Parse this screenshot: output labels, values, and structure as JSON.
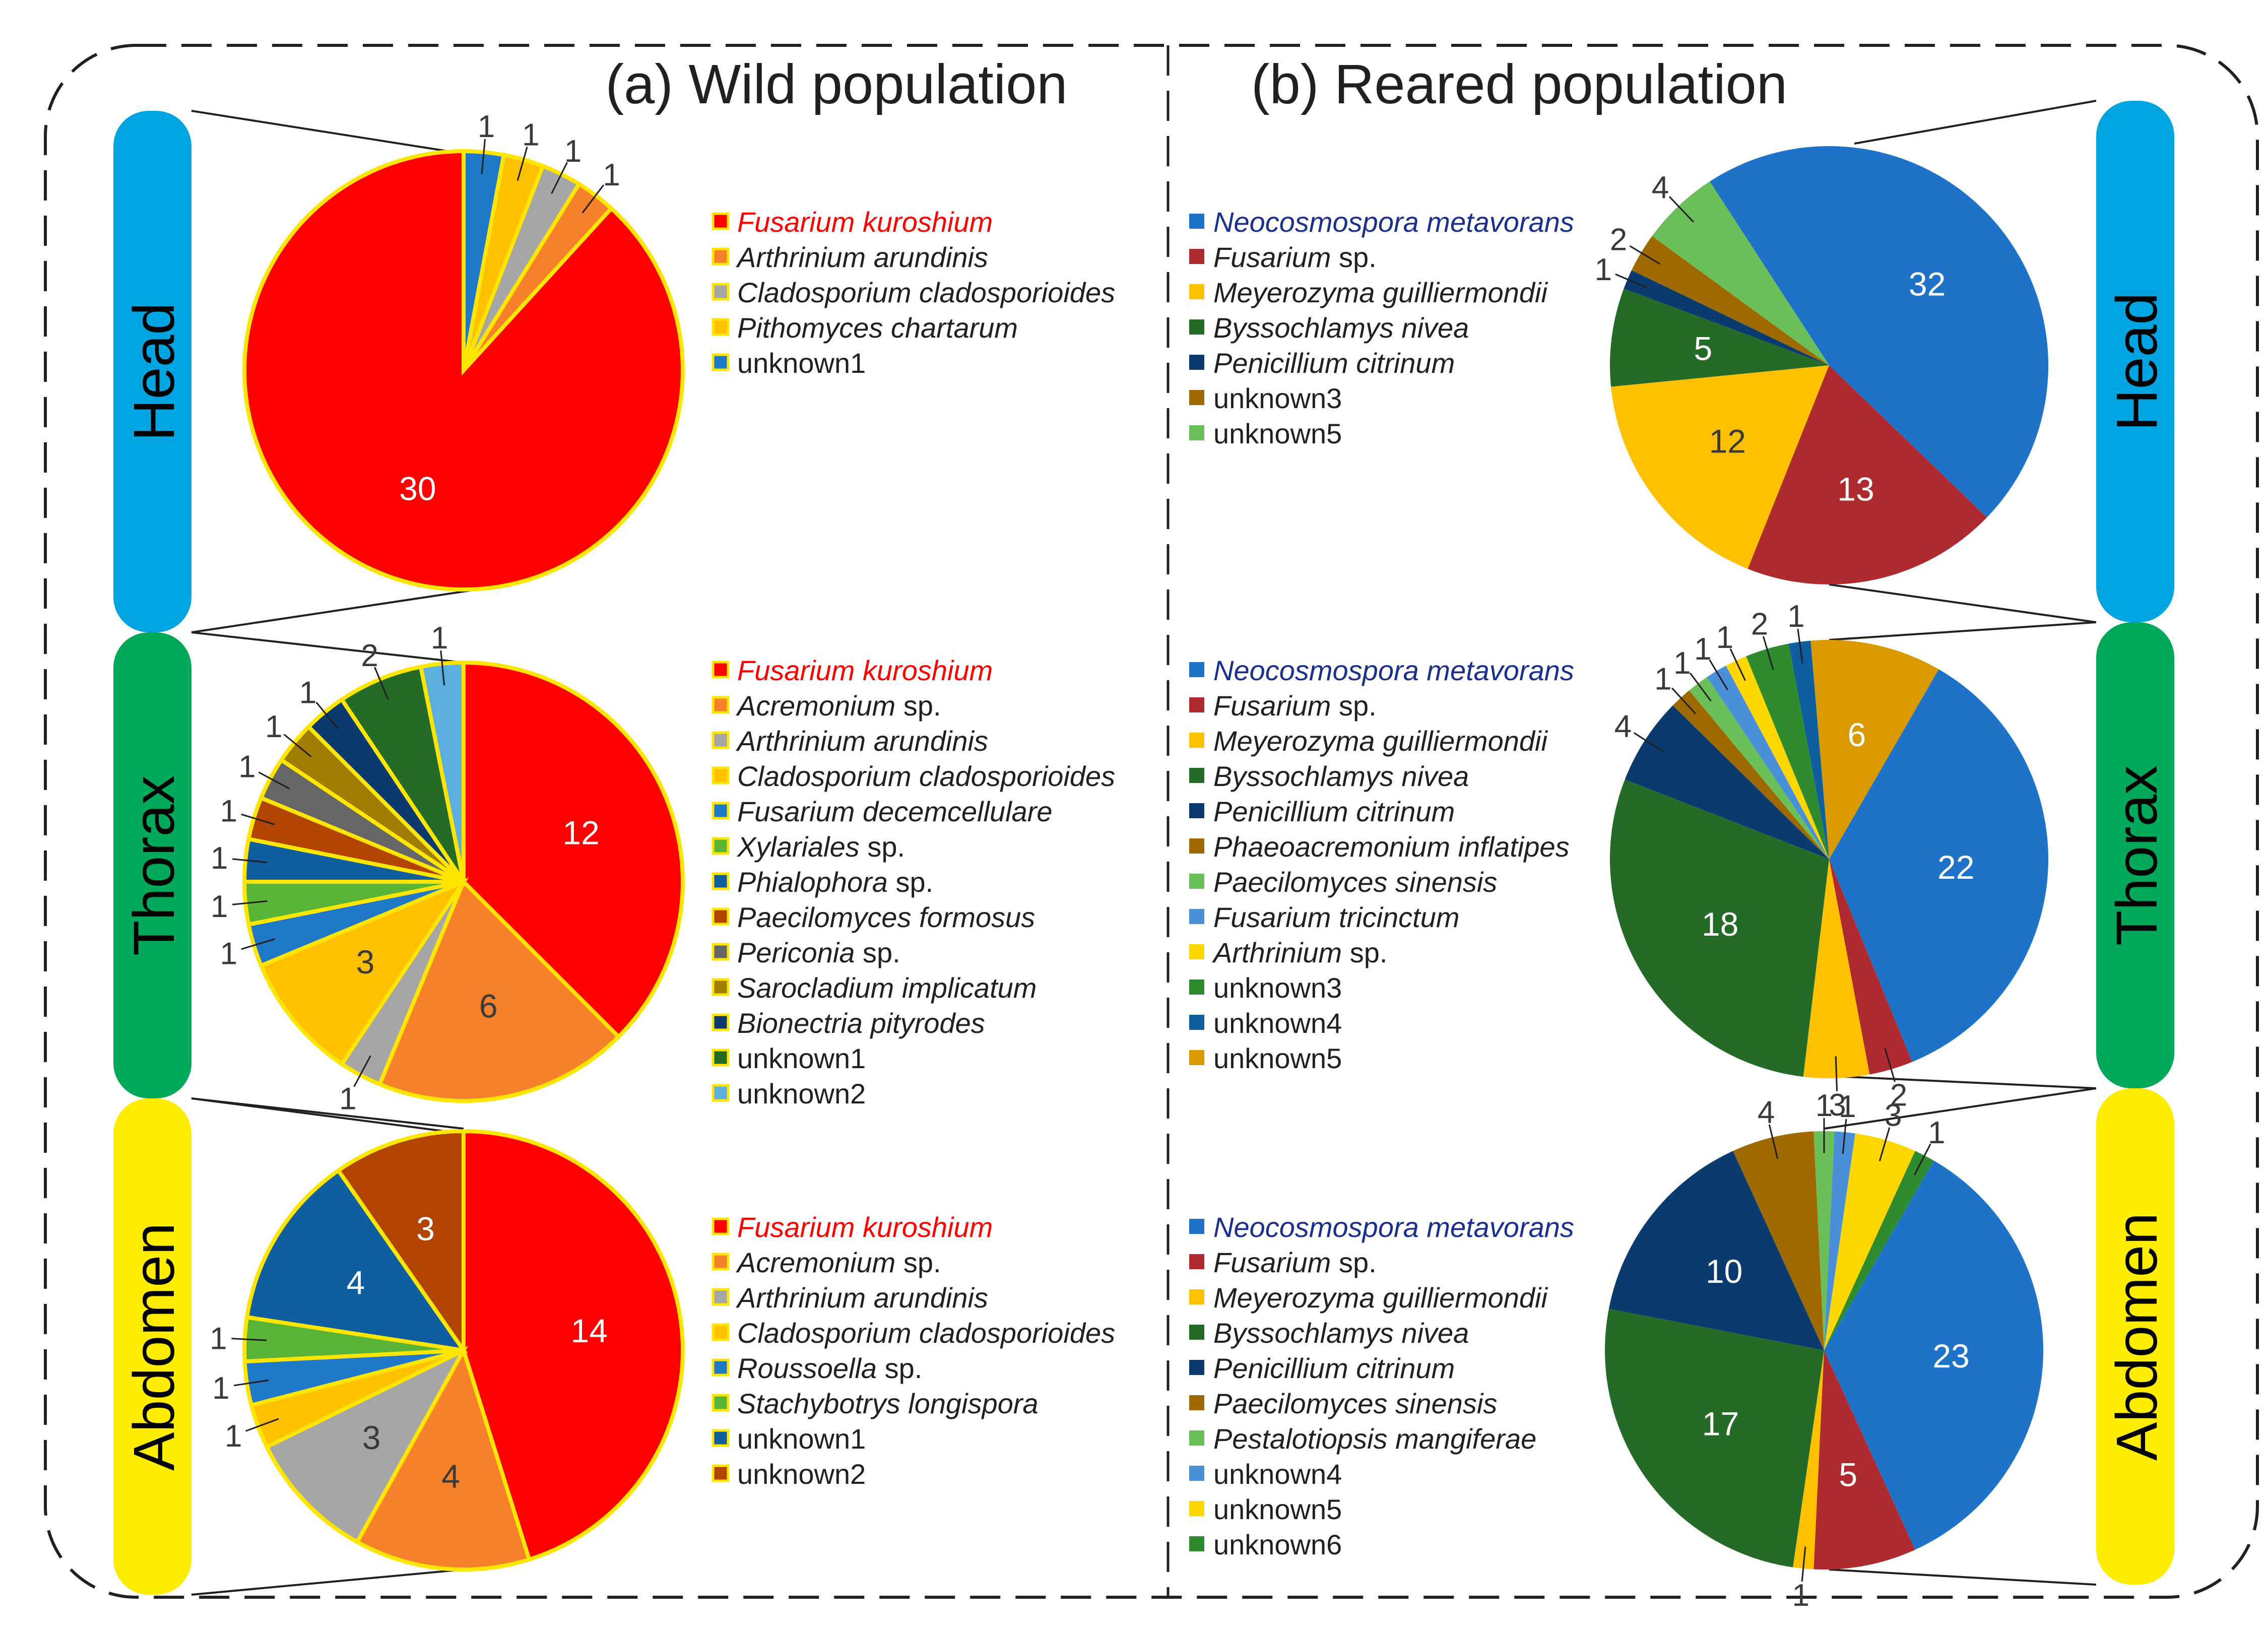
{
  "panels": {
    "wild": {
      "title": "(a) Wild population"
    },
    "reared": {
      "title": "(b) Reared population"
    }
  },
  "body_parts": {
    "head": "Head",
    "thorax": "Thorax",
    "abdomen": "Abdomen"
  },
  "colors": {
    "head_bar": "#00a4e0",
    "thorax_bar": "#00a85a",
    "abdomen_bar": "#ffed00",
    "wild_outline": "#ffe600",
    "wild_highlight_legend": "#ff0000",
    "reared_highlight_legend": "#1a2f8f",
    "border": "#231f20"
  },
  "chart_data": [
    {
      "id": "wild_head",
      "type": "pie",
      "population": "Wild population",
      "body_part": "Head",
      "slices": [
        {
          "label": "Fusarium kuroshium",
          "value": 30,
          "color": "#ff0000"
        },
        {
          "label": "Arthrinium arundinis",
          "value": 1,
          "color": "#f7812a"
        },
        {
          "label": "Cladosporium cladosporioides",
          "value": 1,
          "color": "#a6a6a6"
        },
        {
          "label": "Pithomyces chartarum",
          "value": 1,
          "color": "#ffc000"
        },
        {
          "label": "unknown1",
          "value": 1,
          "color": "#1f78c8"
        }
      ]
    },
    {
      "id": "wild_thorax",
      "type": "pie",
      "population": "Wild population",
      "body_part": "Thorax",
      "slices": [
        {
          "label": "Fusarium kuroshium",
          "value": 12,
          "color": "#ff0000"
        },
        {
          "label": "Acremonium sp.",
          "value": 6,
          "color": "#f7812a"
        },
        {
          "label": "Arthrinium arundinis",
          "value": 1,
          "color": "#a6a6a6"
        },
        {
          "label": "Cladosporium cladosporioides",
          "value": 3,
          "color": "#ffc000"
        },
        {
          "label": "Fusarium decemcellulare",
          "value": 1,
          "color": "#1f78c8"
        },
        {
          "label": "Xylariales sp.",
          "value": 1,
          "color": "#5ab435"
        },
        {
          "label": "Phialophora sp.",
          "value": 1,
          "color": "#0e5ea0"
        },
        {
          "label": "Paecilomyces formosus",
          "value": 1,
          "color": "#b04400"
        },
        {
          "label": "Periconia sp.",
          "value": 1,
          "color": "#666666"
        },
        {
          "label": "Sarocladium implicatum",
          "value": 1,
          "color": "#9e7d00"
        },
        {
          "label": "Bionectria pityrodes",
          "value": 1,
          "color": "#0b3b6e"
        },
        {
          "label": "unknown1",
          "value": 2,
          "color": "#256b28"
        },
        {
          "label": "unknown2",
          "value": 1,
          "color": "#5aaee0"
        }
      ]
    },
    {
      "id": "wild_abdomen",
      "type": "pie",
      "population": "Wild population",
      "body_part": "Abdomen",
      "slices": [
        {
          "label": "Fusarium kuroshium",
          "value": 14,
          "color": "#ff0000"
        },
        {
          "label": "Acremonium sp.",
          "value": 4,
          "color": "#f7812a"
        },
        {
          "label": "Arthrinium arundinis",
          "value": 3,
          "color": "#a6a6a6"
        },
        {
          "label": "Cladosporium cladosporioides",
          "value": 1,
          "color": "#ffc000"
        },
        {
          "label": "Roussoella sp.",
          "value": 1,
          "color": "#1f78c8"
        },
        {
          "label": "Stachybotrys longispora",
          "value": 1,
          "color": "#5ab435"
        },
        {
          "label": "unknown1",
          "value": 4,
          "color": "#0e5ea0"
        },
        {
          "label": "unknown2",
          "value": 3,
          "color": "#b04400"
        }
      ]
    },
    {
      "id": "reared_head",
      "type": "pie",
      "population": "Reared population",
      "body_part": "Head",
      "slices": [
        {
          "label": "Neocosmospora metavorans",
          "value": 32,
          "color": "#1e73c8"
        },
        {
          "label": "Fusarium sp.",
          "value": 13,
          "color": "#ae2a2e"
        },
        {
          "label": "Meyerozyma guilliermondii",
          "value": 12,
          "color": "#ffc000"
        },
        {
          "label": "Byssochlamys nivea",
          "value": 5,
          "color": "#256b28"
        },
        {
          "label": "Penicillium citrinum",
          "value": 1,
          "color": "#0b3b6e"
        },
        {
          "label": "unknown3",
          "value": 2,
          "color": "#9e6a00"
        },
        {
          "label": "unknown5",
          "value": 4,
          "color": "#6bbf59"
        }
      ]
    },
    {
      "id": "reared_thorax",
      "type": "pie",
      "population": "Reared population",
      "body_part": "Thorax",
      "slices": [
        {
          "label": "Neocosmospora metavorans",
          "value": 22,
          "color": "#1e73c8"
        },
        {
          "label": "Fusarium sp.",
          "value": 2,
          "color": "#ae2a2e"
        },
        {
          "label": "Meyerozyma guilliermondii",
          "value": 3,
          "color": "#ffc000"
        },
        {
          "label": "Byssochlamys nivea",
          "value": 18,
          "color": "#256b28"
        },
        {
          "label": "Penicillium citrinum",
          "value": 4,
          "color": "#0b3b6e"
        },
        {
          "label": "Phaeoacremonium inflatipes",
          "value": 1,
          "color": "#9e6a00"
        },
        {
          "label": "Paecilomyces sinensis",
          "value": 1,
          "color": "#6bbf59"
        },
        {
          "label": "Fusarium tricinctum",
          "value": 1,
          "color": "#4a90d9"
        },
        {
          "label": "Arthrinium sp.",
          "value": 1,
          "color": "#ffd700"
        },
        {
          "label": "unknown3",
          "value": 2,
          "color": "#2e8b2e"
        },
        {
          "label": "unknown4",
          "value": 1,
          "color": "#0e5ea0"
        },
        {
          "label": "unknown5",
          "value": 6,
          "color": "#d89a00"
        }
      ]
    },
    {
      "id": "reared_abdomen",
      "type": "pie",
      "population": "Reared population",
      "body_part": "Abdomen",
      "slices": [
        {
          "label": "Neocosmospora metavorans",
          "value": 23,
          "color": "#1e73c8"
        },
        {
          "label": "Fusarium sp.",
          "value": 5,
          "color": "#ae2a2e"
        },
        {
          "label": "Meyerozyma guilliermondii",
          "value": 1,
          "color": "#ffc000"
        },
        {
          "label": "Byssochlamys nivea",
          "value": 17,
          "color": "#256b28"
        },
        {
          "label": "Penicillium citrinum",
          "value": 10,
          "color": "#0b3b6e"
        },
        {
          "label": "Paecilomyces sinensis",
          "value": 4,
          "color": "#9e6a00"
        },
        {
          "label": "Pestalotiopsis mangiferae",
          "value": 1,
          "color": "#6bbf59"
        },
        {
          "label": "unknown4",
          "value": 1,
          "color": "#4a90d9"
        },
        {
          "label": "unknown5",
          "value": 3,
          "color": "#ffd700"
        },
        {
          "label": "unknown6",
          "value": 1,
          "color": "#2e8b2e"
        }
      ]
    }
  ]
}
